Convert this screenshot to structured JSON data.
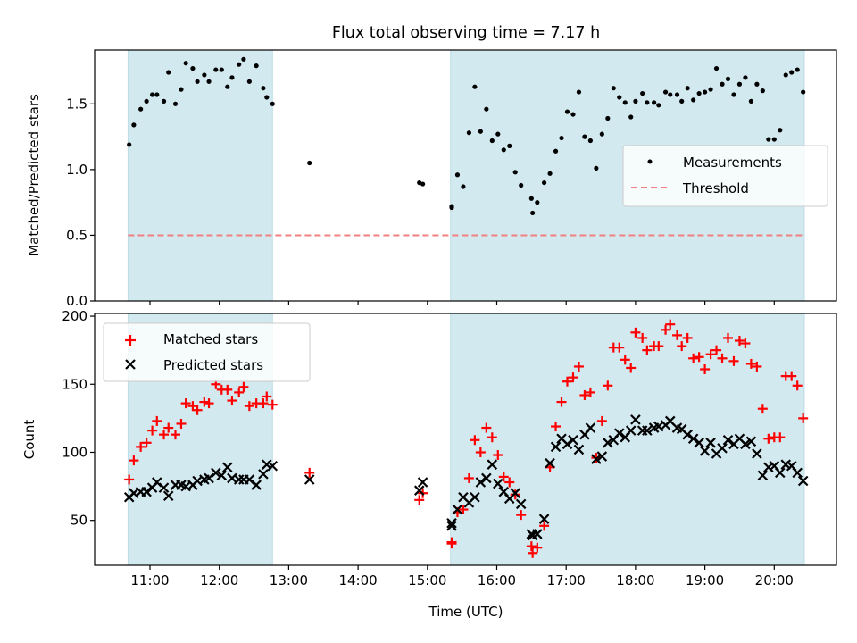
{
  "chart_data": [
    {
      "type": "scatter",
      "title": "Flux total observing time = 7.17 h",
      "xlabel": "",
      "ylabel": "Matched/Predicted stars",
      "xlim": [
        "10:17",
        "20:53"
      ],
      "ylim": [
        0.0,
        1.91
      ],
      "yticks": [
        "0.0",
        "0.5",
        "1.0",
        "1.5"
      ],
      "xticks": [
        "11:00",
        "12:00",
        "13:00",
        "14:00",
        "15:00",
        "16:00",
        "17:00",
        "18:00",
        "19:00",
        "20:00"
      ],
      "grid": false,
      "legend": {
        "placement": "center-right",
        "entries": [
          "Measurements",
          "Threshold"
        ]
      },
      "shaded_regions": [
        [
          "10:41",
          "12:46"
        ],
        [
          "15:20",
          "20:26"
        ]
      ],
      "threshold": {
        "name": "Threshold",
        "value": 0.5,
        "color": "#f08080",
        "style": "dashed"
      },
      "series": [
        {
          "name": "Measurements",
          "color": "#000000",
          "marker": "dot",
          "x": [
            "10:42",
            "10:46",
            "10:52",
            "10:57",
            "11:02",
            "11:06",
            "11:12",
            "11:16",
            "11:22",
            "11:27",
            "11:31",
            "11:37",
            "11:41",
            "11:47",
            "11:51",
            "11:57",
            "12:02",
            "12:07",
            "12:11",
            "12:17",
            "12:21",
            "12:26",
            "12:32",
            "12:38",
            "12:41",
            "12:46",
            "13:18",
            "14:53",
            "14:56",
            "15:21",
            "15:21",
            "15:26",
            "15:31",
            "15:36",
            "15:41",
            "15:46",
            "15:51",
            "15:56",
            "16:01",
            "16:06",
            "16:11",
            "16:16",
            "16:21",
            "16:30",
            "16:31",
            "16:35",
            "16:41",
            "16:46",
            "16:51",
            "16:56",
            "17:01",
            "17:06",
            "17:11",
            "17:16",
            "17:21",
            "17:26",
            "17:31",
            "17:36",
            "17:41",
            "17:46",
            "17:51",
            "17:56",
            "18:00",
            "18:06",
            "18:10",
            "18:16",
            "18:20",
            "18:26",
            "18:30",
            "18:36",
            "18:40",
            "18:45",
            "18:50",
            "18:55",
            "19:00",
            "19:05",
            "19:10",
            "19:15",
            "19:20",
            "19:25",
            "19:30",
            "19:35",
            "19:40",
            "19:45",
            "19:50",
            "19:55",
            "20:00",
            "20:05",
            "20:10",
            "20:15",
            "20:20",
            "20:25"
          ],
          "y": [
            1.19,
            1.34,
            1.46,
            1.52,
            1.57,
            1.57,
            1.52,
            1.74,
            1.5,
            1.61,
            1.81,
            1.77,
            1.67,
            1.72,
            1.67,
            1.76,
            1.76,
            1.63,
            1.7,
            1.8,
            1.84,
            1.67,
            1.79,
            1.62,
            1.55,
            1.5,
            1.05,
            0.9,
            0.89,
            0.71,
            0.72,
            0.96,
            0.87,
            1.28,
            1.63,
            1.29,
            1.46,
            1.22,
            1.27,
            1.15,
            1.18,
            0.98,
            0.88,
            0.78,
            0.67,
            0.75,
            0.9,
            0.97,
            1.14,
            1.24,
            1.44,
            1.42,
            1.59,
            1.25,
            1.22,
            1.01,
            1.27,
            1.39,
            1.62,
            1.55,
            1.51,
            1.4,
            1.52,
            1.58,
            1.51,
            1.51,
            1.49,
            1.59,
            1.57,
            1.57,
            1.52,
            1.62,
            1.53,
            1.58,
            1.59,
            1.61,
            1.77,
            1.65,
            1.69,
            1.57,
            1.65,
            1.7,
            1.52,
            1.65,
            1.6,
            1.23,
            1.23,
            1.3,
            1.72,
            1.74,
            1.76,
            1.59
          ]
        }
      ]
    },
    {
      "type": "scatter",
      "title": "",
      "xlabel": "Time (UTC)",
      "ylabel": "Count",
      "xlim": [
        "10:17",
        "20:53"
      ],
      "ylim": [
        17,
        202
      ],
      "yticks": [
        "50",
        "100",
        "150",
        "200"
      ],
      "xticks": [
        "11:00",
        "12:00",
        "13:00",
        "14:00",
        "15:00",
        "16:00",
        "17:00",
        "18:00",
        "19:00",
        "20:00"
      ],
      "grid": false,
      "legend": {
        "placement": "top-left",
        "entries": [
          "Matched stars",
          "Predicted stars"
        ]
      },
      "shaded_regions": [
        [
          "10:41",
          "12:46"
        ],
        [
          "15:20",
          "20:26"
        ]
      ],
      "series": [
        {
          "name": "Matched stars",
          "color": "#ff0000",
          "marker": "plus",
          "x": [
            "10:42",
            "10:46",
            "10:52",
            "10:57",
            "11:02",
            "11:06",
            "11:12",
            "11:16",
            "11:22",
            "11:27",
            "11:31",
            "11:37",
            "11:41",
            "11:47",
            "11:51",
            "11:57",
            "12:02",
            "12:07",
            "12:11",
            "12:17",
            "12:21",
            "12:26",
            "12:32",
            "12:38",
            "12:41",
            "12:46",
            "13:18",
            "14:53",
            "14:56",
            "15:21",
            "15:21",
            "15:26",
            "15:31",
            "15:36",
            "15:41",
            "15:46",
            "15:51",
            "15:56",
            "16:01",
            "16:06",
            "16:11",
            "16:16",
            "16:21",
            "16:30",
            "16:31",
            "16:35",
            "16:41",
            "16:46",
            "16:51",
            "16:56",
            "17:01",
            "17:06",
            "17:11",
            "17:16",
            "17:21",
            "17:26",
            "17:31",
            "17:36",
            "17:41",
            "17:46",
            "17:51",
            "17:56",
            "18:00",
            "18:06",
            "18:10",
            "18:16",
            "18:20",
            "18:26",
            "18:30",
            "18:36",
            "18:40",
            "18:45",
            "18:50",
            "18:55",
            "19:00",
            "19:05",
            "19:10",
            "19:15",
            "19:20",
            "19:25",
            "19:30",
            "19:35",
            "19:40",
            "19:45",
            "19:50",
            "19:55",
            "20:00",
            "20:05",
            "20:10",
            "20:15",
            "20:20",
            "20:25"
          ],
          "y": [
            80,
            94,
            104,
            107,
            116,
            123,
            113,
            118,
            113,
            121,
            136,
            134,
            131,
            137,
            136,
            150,
            146,
            146,
            138,
            144,
            148,
            134,
            136,
            136,
            141,
            135,
            85,
            65,
            70,
            34,
            33,
            56,
            58,
            81,
            109,
            100,
            118,
            111,
            98,
            82,
            78,
            69,
            54,
            31,
            26,
            30,
            46,
            89,
            119,
            137,
            152,
            155,
            163,
            142,
            144,
            96,
            123,
            149,
            177,
            177,
            168,
            162,
            188,
            184,
            175,
            178,
            178,
            190,
            194,
            186,
            178,
            184,
            169,
            170,
            161,
            172,
            175,
            169,
            184,
            167,
            182,
            180,
            165,
            163,
            132,
            110,
            111,
            111,
            156,
            156,
            149,
            125
          ]
        },
        {
          "name": "Predicted stars",
          "color": "#000000",
          "marker": "x",
          "x": [
            "10:42",
            "10:46",
            "10:52",
            "10:57",
            "11:02",
            "11:06",
            "11:12",
            "11:16",
            "11:22",
            "11:27",
            "11:31",
            "11:37",
            "11:41",
            "11:47",
            "11:51",
            "11:57",
            "12:02",
            "12:07",
            "12:11",
            "12:17",
            "12:21",
            "12:26",
            "12:32",
            "12:38",
            "12:41",
            "12:46",
            "13:18",
            "14:53",
            "14:56",
            "15:21",
            "15:21",
            "15:26",
            "15:31",
            "15:36",
            "15:41",
            "15:46",
            "15:51",
            "15:56",
            "16:01",
            "16:06",
            "16:11",
            "16:16",
            "16:21",
            "16:30",
            "16:31",
            "16:35",
            "16:41",
            "16:46",
            "16:51",
            "16:56",
            "17:01",
            "17:06",
            "17:11",
            "17:16",
            "17:21",
            "17:26",
            "17:31",
            "17:36",
            "17:41",
            "17:46",
            "17:51",
            "17:56",
            "18:00",
            "18:06",
            "18:10",
            "18:16",
            "18:20",
            "18:26",
            "18:30",
            "18:36",
            "18:40",
            "18:45",
            "18:50",
            "18:55",
            "19:00",
            "19:05",
            "19:10",
            "19:15",
            "19:20",
            "19:25",
            "19:30",
            "19:35",
            "19:40",
            "19:45",
            "19:50",
            "19:55",
            "20:00",
            "20:05",
            "20:10",
            "20:15",
            "20:20",
            "20:25"
          ],
          "y": [
            67,
            70,
            71,
            71,
            74,
            78,
            74,
            68,
            76,
            76,
            75,
            76,
            79,
            80,
            81,
            85,
            83,
            89,
            81,
            80,
            80,
            80,
            76,
            84,
            91,
            90,
            80,
            72,
            78,
            48,
            46,
            58,
            67,
            63,
            67,
            78,
            81,
            91,
            77,
            71,
            66,
            70,
            62,
            40,
            39,
            40,
            51,
            92,
            104,
            110,
            106,
            109,
            102,
            113,
            118,
            95,
            97,
            107,
            109,
            114,
            111,
            116,
            124,
            116,
            116,
            118,
            119,
            120,
            123,
            118,
            117,
            113,
            110,
            107,
            101,
            107,
            99,
            103,
            109,
            106,
            110,
            106,
            108,
            99,
            83,
            89,
            90,
            85,
            91,
            90,
            85,
            79
          ]
        }
      ]
    }
  ]
}
